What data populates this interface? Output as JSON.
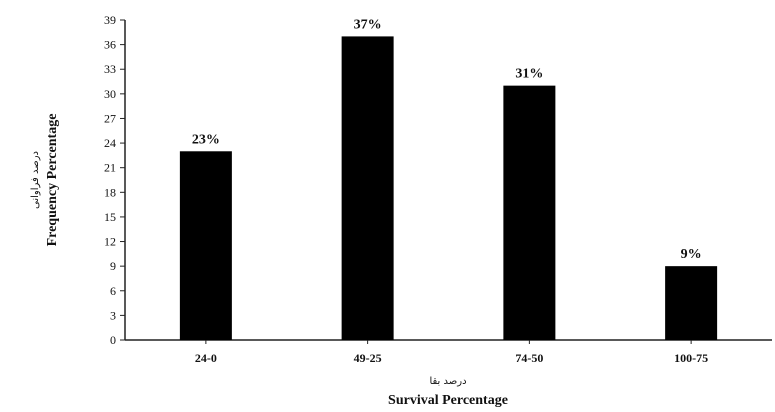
{
  "chart_data": {
    "type": "bar",
    "title": "",
    "categories": [
      "24-0",
      "49-25",
      "74-50",
      "100-75"
    ],
    "values": [
      23,
      37,
      31,
      9
    ],
    "data_labels": [
      "23%",
      "37%",
      "31%",
      "9%"
    ],
    "xlabel": "Survival Percentage",
    "xlabel_fa": "درصد بقا",
    "ylabel": "Frequency Percentage",
    "ylabel_fa": "درصد فراوانی",
    "ylim": [
      0,
      39
    ],
    "yticks": [
      0,
      3,
      6,
      9,
      12,
      15,
      18,
      21,
      24,
      27,
      30,
      33,
      36,
      39
    ],
    "bar_color": "#000000",
    "grid": false,
    "legend": "none"
  }
}
